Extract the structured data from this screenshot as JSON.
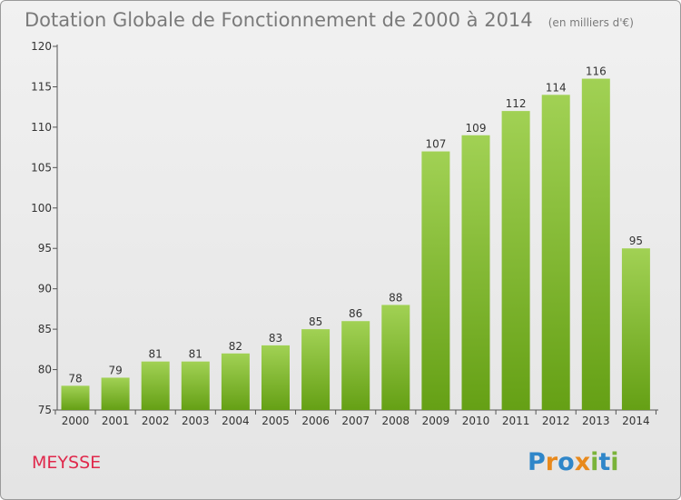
{
  "chart_data": {
    "type": "bar",
    "title": "Dotation Globale de Fonctionnement de 2000 à 2014",
    "subtitle": "(en milliers d'€)",
    "categories": [
      "2000",
      "2001",
      "2002",
      "2003",
      "2004",
      "2005",
      "2006",
      "2007",
      "2008",
      "2009",
      "2010",
      "2011",
      "2012",
      "2013",
      "2014"
    ],
    "values": [
      78,
      79,
      81,
      81,
      82,
      83,
      85,
      86,
      88,
      107,
      109,
      112,
      114,
      116,
      95
    ],
    "ylim": [
      75,
      120
    ],
    "yticks": [
      75,
      80,
      85,
      90,
      95,
      100,
      105,
      110,
      115,
      120
    ],
    "grid": false,
    "bar_color_top": "#a1d154",
    "bar_color_bottom": "#65a015"
  },
  "footer": {
    "commune": "MEYSSE",
    "logo_text": "Proxiti",
    "logo_colors": [
      "#2f86c9",
      "#e8891c",
      "#2f86c9",
      "#e8891c",
      "#7ab33a",
      "#2f86c9",
      "#7ab33a"
    ]
  },
  "colors": {
    "commune_text": "#e0294c",
    "title_text": "#7a7a7a"
  }
}
